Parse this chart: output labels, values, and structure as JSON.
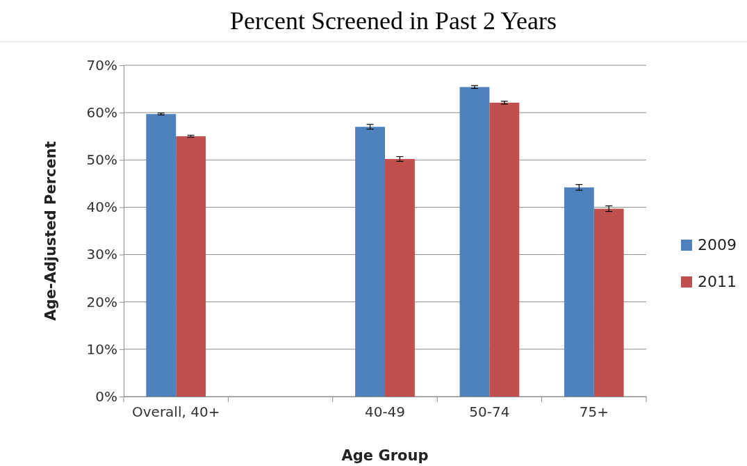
{
  "chart_data": {
    "type": "bar",
    "title": "Percent Screened in Past 2 Years",
    "xlabel": "Age Group",
    "ylabel": "Age-Adjusted Percent",
    "categories": [
      "Overall, 40+",
      null,
      "40-49",
      "50-74",
      "75+"
    ],
    "series": [
      {
        "name": "2009",
        "color": "#4f81bd",
        "values": [
          59.7,
          null,
          57.0,
          65.4,
          44.2
        ],
        "errors": [
          0.2,
          null,
          0.5,
          0.3,
          0.6
        ]
      },
      {
        "name": "2011",
        "color": "#c0504d",
        "values": [
          55.0,
          null,
          50.2,
          62.1,
          39.7
        ],
        "errors": [
          0.2,
          null,
          0.5,
          0.3,
          0.6
        ]
      }
    ],
    "ylim": [
      0,
      70
    ],
    "yticks": [
      {
        "value": 0,
        "label": "0%"
      },
      {
        "value": 10,
        "label": "10%"
      },
      {
        "value": 20,
        "label": "20%"
      },
      {
        "value": 30,
        "label": "30%"
      },
      {
        "value": 40,
        "label": "40%"
      },
      {
        "value": 50,
        "label": "50%"
      },
      {
        "value": 60,
        "label": "60%"
      },
      {
        "value": 70,
        "label": "70%"
      }
    ],
    "grid": "y",
    "legend": "right"
  }
}
